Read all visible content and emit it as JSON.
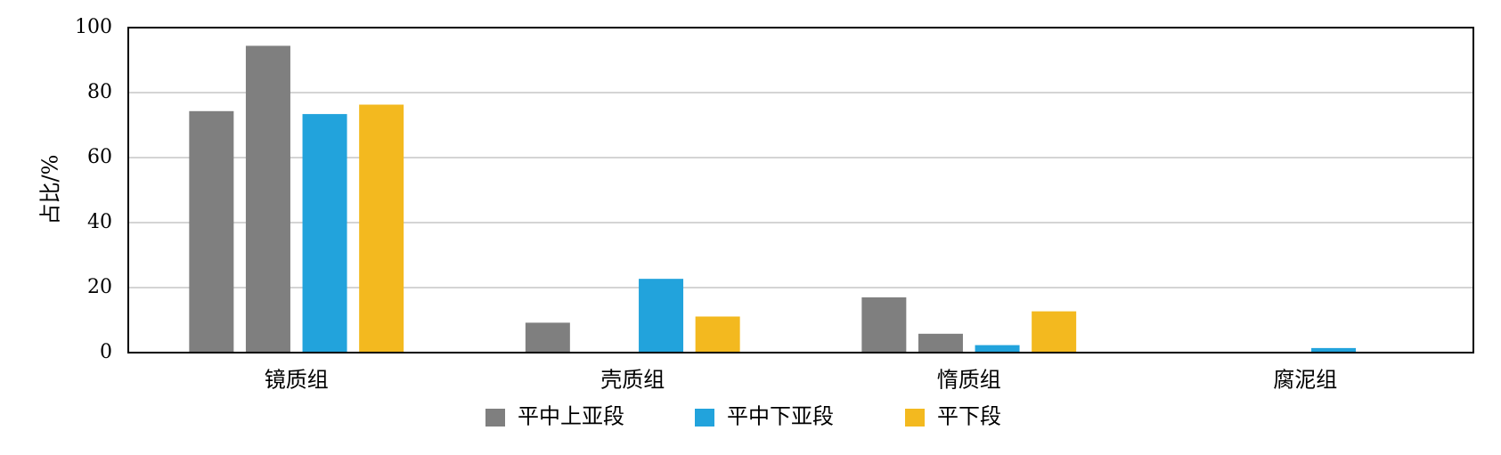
{
  "chart_data": {
    "type": "bar",
    "title": "",
    "xlabel": "",
    "ylabel": "占比/%",
    "ylim": [
      0,
      100
    ],
    "yticks": [
      0,
      20,
      40,
      60,
      80,
      100
    ],
    "grid": true,
    "legend_position": "bottom",
    "categories": [
      "镜质组",
      "壳质组",
      "惰质组",
      "腐泥组"
    ],
    "bar_slots": [
      {
        "legend_index": 0,
        "color": "#7f7f7f"
      },
      {
        "legend_index": 0,
        "color": "#7f7f7f"
      },
      {
        "legend_index": 1,
        "color": "#22a3dc"
      },
      {
        "legend_index": 2,
        "color": "#f3b91f"
      }
    ],
    "values": [
      [
        74.3,
        94.4,
        73.4,
        76.3
      ],
      [
        9.2,
        0,
        22.7,
        11.1
      ],
      [
        17.0,
        5.8,
        2.3,
        12.7
      ],
      [
        0,
        0,
        1.4,
        0
      ]
    ],
    "legend": [
      {
        "name": "平中上亚段",
        "color": "#7f7f7f"
      },
      {
        "name": "平中下亚段",
        "color": "#22a3dc"
      },
      {
        "name": "平下段",
        "color": "#f3b91f"
      }
    ]
  }
}
